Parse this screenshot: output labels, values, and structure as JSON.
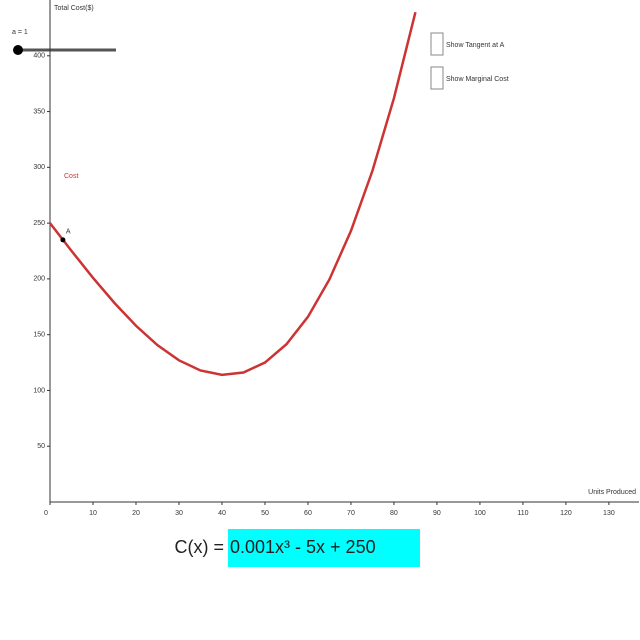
{
  "chart_data": {
    "type": "line",
    "y_label": "Total Cost($)",
    "x_label": "Units Produced",
    "slider_label": "a = 1",
    "checkboxes": [
      "Show Tangent at A",
      "Show Marginal Cost"
    ],
    "input_label": "C(x) =",
    "input_value": "0.001x³ - 5x + 250",
    "series": [
      {
        "name": "Cost",
        "color": "#cc3333",
        "x": [
          0,
          5,
          10,
          15,
          20,
          25,
          30,
          35,
          40,
          45,
          50,
          55,
          60,
          65,
          70,
          75,
          80,
          85
        ],
        "values": [
          250,
          225.1,
          201,
          178.4,
          158,
          140.6,
          127,
          117.9,
          114,
          116.1,
          125,
          141.4,
          166,
          199.6,
          243,
          296.9,
          362,
          439.1
        ]
      }
    ],
    "point": {
      "label": "A",
      "x": 3,
      "y": 235
    },
    "xlim": [
      0,
      137
    ],
    "ylim": [
      0,
      450
    ],
    "xticks": [
      0,
      10,
      20,
      30,
      40,
      50,
      60,
      70,
      80,
      90,
      100,
      110,
      120,
      130
    ],
    "yticks": [
      50,
      100,
      150,
      200,
      250,
      300,
      350,
      400
    ]
  }
}
